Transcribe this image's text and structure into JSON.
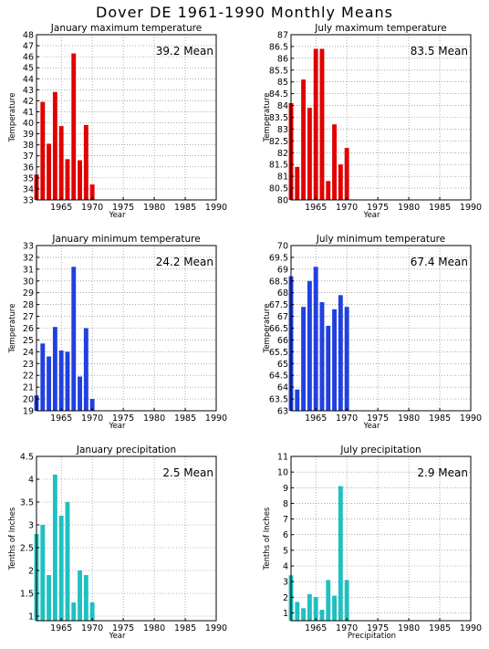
{
  "page_title": "Dover DE   1961-1990  Monthly Means",
  "chart_data": [
    {
      "type": "bar",
      "title": "January maximum temperature",
      "xlabel": "Year",
      "ylabel": "Temperature",
      "mean_label": "39.2  Mean",
      "color": "#e00000",
      "xlim": [
        1961,
        1990
      ],
      "ylim": [
        33,
        48
      ],
      "yticks": [
        "33",
        "34",
        "35",
        "36",
        "37",
        "38",
        "39",
        "40",
        "41",
        "42",
        "43",
        "44",
        "45",
        "46",
        "47",
        "48"
      ],
      "xticks": [
        "1965",
        "1970",
        "1975",
        "1980",
        "1985",
        "1990"
      ],
      "x": [
        1961,
        1962,
        1963,
        1964,
        1965,
        1966,
        1967,
        1968,
        1969,
        1970
      ],
      "values": [
        35.3,
        41.9,
        38.1,
        42.8,
        39.7,
        36.7,
        46.3,
        36.6,
        39.8,
        34.4
      ],
      "grid": true
    },
    {
      "type": "bar",
      "title": "July maximum temperature",
      "xlabel": "Year",
      "ylabel": "Temperature",
      "mean_label": "83.5  Mean",
      "color": "#e00000",
      "xlim": [
        1961,
        1990
      ],
      "ylim": [
        80,
        87
      ],
      "yticks": [
        "80",
        "80.5",
        "81",
        "81.5",
        "82",
        "82.5",
        "83",
        "83.5",
        "84",
        "84.5",
        "85",
        "85.5",
        "86",
        "86.5",
        "87"
      ],
      "xticks": [
        "1965",
        "1970",
        "1975",
        "1980",
        "1985",
        "1990"
      ],
      "x": [
        1961,
        1962,
        1963,
        1964,
        1965,
        1966,
        1967,
        1968,
        1969,
        1970
      ],
      "values": [
        84.1,
        81.4,
        85.1,
        83.9,
        86.4,
        86.4,
        80.8,
        83.2,
        81.5,
        82.2
      ],
      "grid": true
    },
    {
      "type": "bar",
      "title": "January minimum temperature",
      "xlabel": "Year",
      "ylabel": "Temperature",
      "mean_label": "24.2  Mean",
      "color": "#2040e0",
      "xlim": [
        1961,
        1990
      ],
      "ylim": [
        19,
        33
      ],
      "yticks": [
        "19",
        "20",
        "21",
        "22",
        "23",
        "24",
        "25",
        "26",
        "27",
        "28",
        "29",
        "30",
        "31",
        "32",
        "33"
      ],
      "xticks": [
        "1965",
        "1970",
        "1975",
        "1980",
        "1985",
        "1990"
      ],
      "x": [
        1961,
        1962,
        1963,
        1964,
        1965,
        1966,
        1967,
        1968,
        1969,
        1970
      ],
      "values": [
        20.3,
        24.7,
        23.6,
        26.1,
        24.1,
        24.0,
        31.2,
        21.9,
        26.0,
        20.0
      ],
      "grid": true
    },
    {
      "type": "bar",
      "title": "July minimum temperature",
      "xlabel": "Year",
      "ylabel": "Temperature",
      "mean_label": "67.4  Mean",
      "color": "#2040e0",
      "xlim": [
        1961,
        1990
      ],
      "ylim": [
        63,
        70
      ],
      "yticks": [
        "63",
        "63.5",
        "64",
        "64.5",
        "65",
        "65.5",
        "66",
        "66.5",
        "67",
        "67.5",
        "68",
        "68.5",
        "69",
        "69.5",
        "70"
      ],
      "xticks": [
        "1965",
        "1970",
        "1975",
        "1980",
        "1985",
        "1990"
      ],
      "x": [
        1961,
        1962,
        1963,
        1964,
        1965,
        1966,
        1967,
        1968,
        1969,
        1970
      ],
      "values": [
        68.7,
        63.9,
        67.4,
        68.5,
        69.1,
        67.6,
        66.6,
        67.3,
        67.9,
        67.4
      ],
      "grid": true
    },
    {
      "type": "bar",
      "title": "January precipitation",
      "xlabel": "Year",
      "ylabel": "Tenths of Inches",
      "mean_label": "2.5  Mean",
      "color": "#20c0c0",
      "xlim": [
        1961,
        1990
      ],
      "ylim": [
        0.9,
        4.5
      ],
      "yticks": [
        "1",
        "1.5",
        "2",
        "2.5",
        "3",
        "3.5",
        "4",
        "4.5"
      ],
      "ytick_values": [
        1,
        1.5,
        2,
        2.5,
        3,
        3.5,
        4,
        4.5
      ],
      "xticks": [
        "1965",
        "1970",
        "1975",
        "1980",
        "1985",
        "1990"
      ],
      "x": [
        1961,
        1962,
        1963,
        1964,
        1965,
        1966,
        1967,
        1968,
        1969,
        1970
      ],
      "values": [
        2.8,
        3.0,
        1.9,
        4.1,
        3.2,
        3.5,
        1.3,
        2.0,
        1.9,
        1.3
      ],
      "grid": true
    },
    {
      "type": "bar",
      "title": "July precipitation",
      "xlabel": "Precipitation",
      "ylabel": "Tenths of Inches",
      "mean_label": "2.9  Mean",
      "color": "#20c0c0",
      "xlim": [
        1961,
        1990
      ],
      "ylim": [
        0.5,
        11
      ],
      "yticks": [
        "1",
        "2",
        "3",
        "4",
        "5",
        "6",
        "7",
        "8",
        "9",
        "10",
        "11"
      ],
      "ytick_values": [
        1,
        2,
        3,
        4,
        5,
        6,
        7,
        8,
        9,
        10,
        11
      ],
      "xticks": [
        "1965",
        "1970",
        "1975",
        "1980",
        "1985",
        "1990"
      ],
      "x": [
        1961,
        1962,
        1963,
        1964,
        1965,
        1966,
        1967,
        1968,
        1969,
        1970
      ],
      "values": [
        3.4,
        1.7,
        1.3,
        2.2,
        2.0,
        1.2,
        3.1,
        2.1,
        9.1,
        3.1
      ],
      "grid": true
    }
  ]
}
